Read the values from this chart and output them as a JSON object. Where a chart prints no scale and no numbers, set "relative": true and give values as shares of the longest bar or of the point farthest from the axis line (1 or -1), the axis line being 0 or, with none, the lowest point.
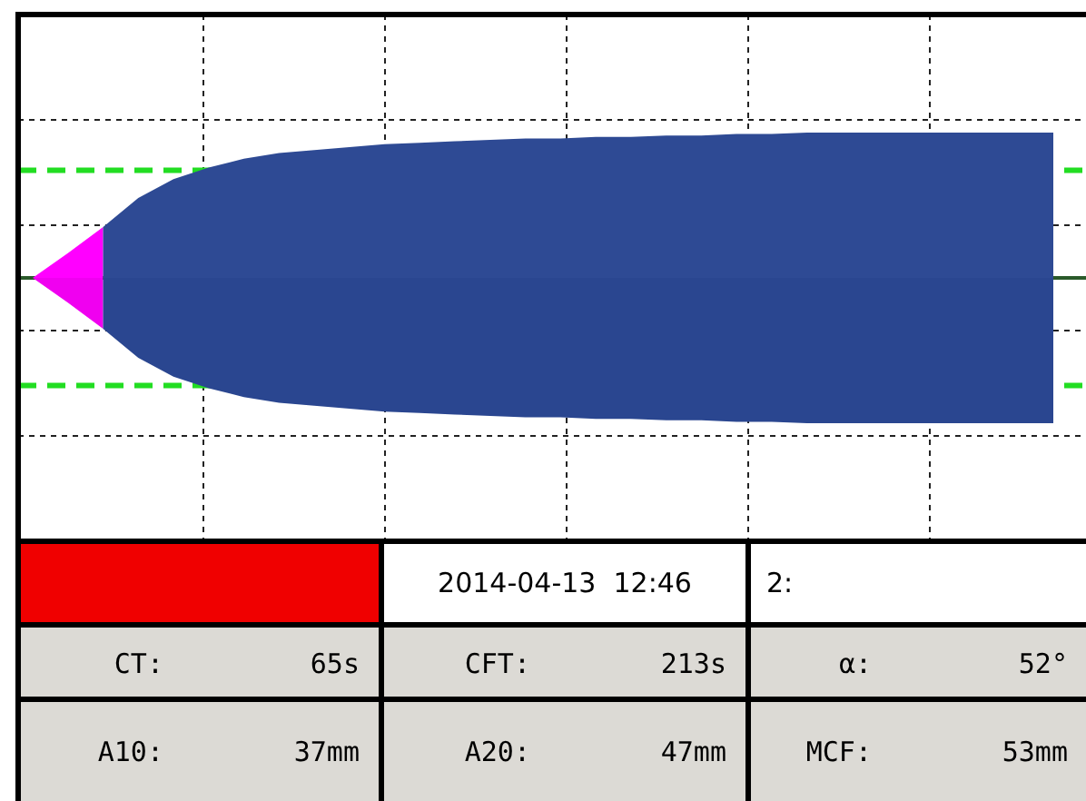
{
  "chart_data": [
    {
      "type": "area",
      "relative": true,
      "grid": true,
      "categories": [
        null,
        null,
        null,
        null,
        null,
        null,
        null,
        null,
        null,
        null,
        null,
        null,
        null,
        null,
        null,
        null,
        null,
        null,
        null,
        null,
        null,
        null,
        null,
        null,
        null,
        null,
        null,
        null,
        null,
        null
      ],
      "series": [
        {
          "color": "#ff00ff",
          "values": [
            0,
            0.17,
            0.35,
            null,
            null,
            null,
            null,
            null,
            null,
            null,
            null,
            null,
            null,
            null,
            null,
            null,
            null,
            null,
            null,
            null,
            null,
            null,
            null,
            null,
            null,
            null,
            null,
            null,
            null,
            null
          ]
        },
        {
          "color": "#f000f0",
          "values": [
            0,
            -0.17,
            -0.35,
            null,
            null,
            null,
            null,
            null,
            null,
            null,
            null,
            null,
            null,
            null,
            null,
            null,
            null,
            null,
            null,
            null,
            null,
            null,
            null,
            null,
            null,
            null,
            null,
            null,
            null,
            null
          ]
        },
        {
          "color": "#2e4a94",
          "values": [
            null,
            null,
            0.35,
            0.55,
            0.68,
            0.76,
            0.82,
            0.86,
            0.88,
            0.9,
            0.92,
            0.93,
            0.94,
            0.95,
            0.96,
            0.96,
            0.97,
            0.97,
            0.98,
            0.98,
            0.99,
            0.99,
            1,
            1,
            1,
            1,
            1,
            1,
            1,
            1
          ]
        },
        {
          "color": "#2a4690",
          "values": [
            null,
            null,
            -0.35,
            -0.55,
            -0.68,
            -0.76,
            -0.82,
            -0.86,
            -0.88,
            -0.9,
            -0.92,
            -0.93,
            -0.94,
            -0.95,
            -0.96,
            -0.96,
            -0.97,
            -0.97,
            -0.98,
            -0.98,
            -0.99,
            -0.99,
            -1,
            -1,
            -1,
            -1,
            -1,
            -1,
            -1,
            -1
          ]
        }
      ],
      "ref_lines": [
        {
          "axis": "y",
          "value": 0.74,
          "color": "#22dd22",
          "line_style": "dashed"
        },
        {
          "axis": "y",
          "value": -0.74,
          "color": "#22dd22",
          "line_style": "dashed"
        }
      ]
    },
    {
      "type": "other",
      "annotations": [
        "2014-04-13  12:46",
        "2:",
        "CT:",
        "65s",
        "CFT:",
        "213s",
        "α:",
        "52°",
        "A10:",
        "37mm",
        "A20:",
        "47mm",
        "MCF:",
        "53mm"
      ]
    }
  ]
}
